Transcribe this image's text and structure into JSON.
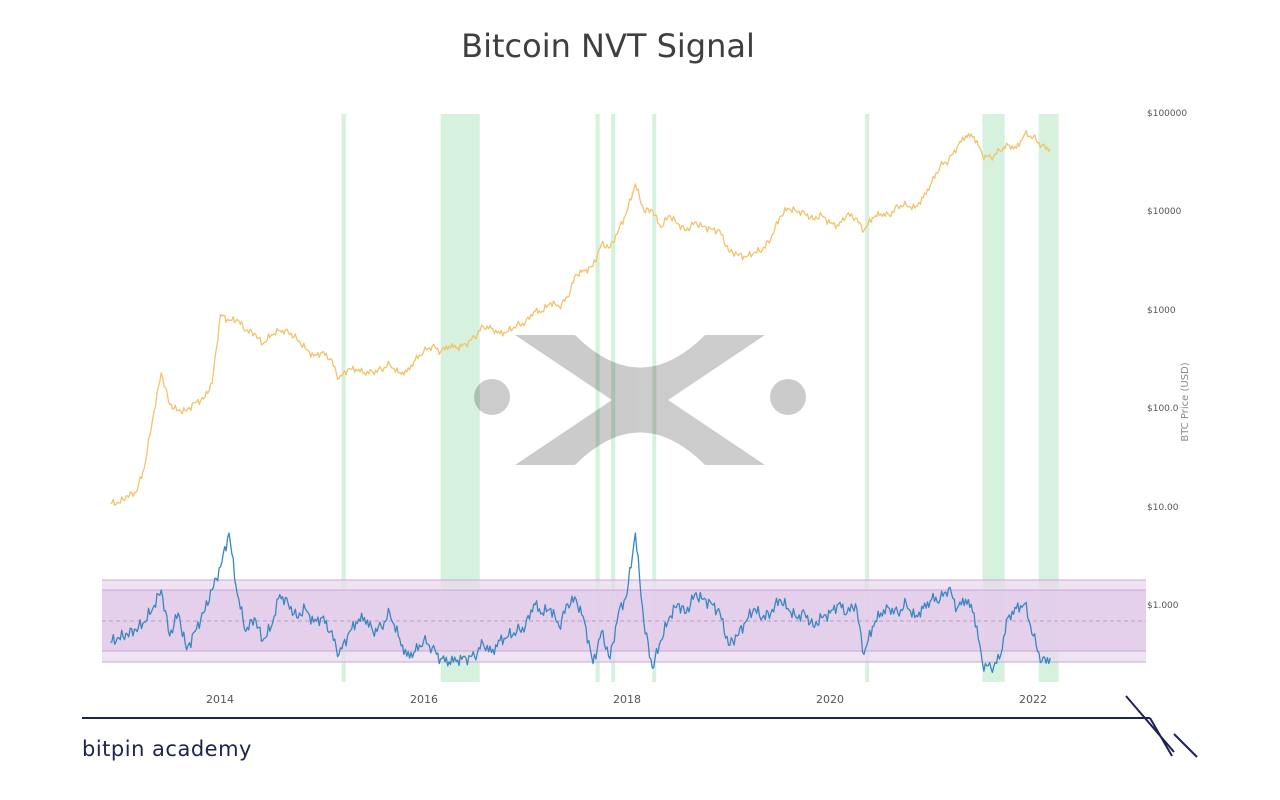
{
  "chart_data": {
    "title": "Bitcoin NVT Signal",
    "type": "line",
    "right_axis": {
      "label": "BTC Price (USD)",
      "scale": "log",
      "range": [
        1,
        100000
      ],
      "tick_labels": [
        "$100000",
        "$10000",
        "$1000",
        "$100.0",
        "$10.00",
        "$1.000"
      ]
    },
    "x_axis": {
      "range": [
        "2012-09",
        "2023-02"
      ],
      "tick_labels": [
        "2014",
        "2016",
        "2018",
        "2020",
        "2022"
      ]
    },
    "band_ranges": [
      [
        "2015-01-10",
        "2015-01-25"
      ],
      [
        "2016-01-01",
        "2016-05-20"
      ],
      [
        "2017-07-10",
        "2017-07-25"
      ],
      [
        "2017-09-05",
        "2017-09-20"
      ],
      [
        "2018-02-01",
        "2018-02-15"
      ],
      [
        "2020-03-05",
        "2020-03-20"
      ],
      [
        "2021-05-01",
        "2021-07-20"
      ],
      [
        "2021-11-20",
        "2022-01-31"
      ]
    ],
    "series": [
      {
        "color": "#f2c36b",
        "axis": "right",
        "points": [
          [
            "2012-10",
            11
          ],
          [
            "2012-11",
            11
          ],
          [
            "2012-12",
            13
          ],
          [
            "2013-01",
            14
          ],
          [
            "2013-02",
            25
          ],
          [
            "2013-03",
            80
          ],
          [
            "2013-04",
            230
          ],
          [
            "2013-05",
            110
          ],
          [
            "2013-06",
            95
          ],
          [
            "2013-07",
            95
          ],
          [
            "2013-08",
            115
          ],
          [
            "2013-09",
            125
          ],
          [
            "2013-10",
            180
          ],
          [
            "2013-11",
            900
          ],
          [
            "2013-12",
            780
          ],
          [
            "2014-01",
            800
          ],
          [
            "2014-02",
            620
          ],
          [
            "2014-03",
            580
          ],
          [
            "2014-04",
            450
          ],
          [
            "2014-05",
            560
          ],
          [
            "2014-06",
            620
          ],
          [
            "2014-07",
            600
          ],
          [
            "2014-08",
            510
          ],
          [
            "2014-09",
            410
          ],
          [
            "2014-10",
            340
          ],
          [
            "2014-11",
            370
          ],
          [
            "2014-12",
            320
          ],
          [
            "2015-01",
            200
          ],
          [
            "2015-02",
            250
          ],
          [
            "2015-03",
            250
          ],
          [
            "2015-04",
            230
          ],
          [
            "2015-05",
            235
          ],
          [
            "2015-06",
            250
          ],
          [
            "2015-07",
            280
          ],
          [
            "2015-08",
            230
          ],
          [
            "2015-09",
            235
          ],
          [
            "2015-10",
            310
          ],
          [
            "2015-11",
            380
          ],
          [
            "2015-12",
            430
          ],
          [
            "2016-01",
            380
          ],
          [
            "2016-02",
            430
          ],
          [
            "2016-03",
            415
          ],
          [
            "2016-04",
            450
          ],
          [
            "2016-05",
            530
          ],
          [
            "2016-06",
            680
          ],
          [
            "2016-07",
            650
          ],
          [
            "2016-08",
            575
          ],
          [
            "2016-09",
            610
          ],
          [
            "2016-10",
            700
          ],
          [
            "2016-11",
            740
          ],
          [
            "2016-12",
            960
          ],
          [
            "2017-01",
            970
          ],
          [
            "2017-02",
            1190
          ],
          [
            "2017-03",
            1080
          ],
          [
            "2017-04",
            1350
          ],
          [
            "2017-05",
            2300
          ],
          [
            "2017-06",
            2500
          ],
          [
            "2017-07",
            2800
          ],
          [
            "2017-08",
            4700
          ],
          [
            "2017-09",
            4300
          ],
          [
            "2017-10",
            6400
          ],
          [
            "2017-11",
            10000
          ],
          [
            "2017-12",
            19000
          ],
          [
            "2018-01",
            10200
          ],
          [
            "2018-02",
            10300
          ],
          [
            "2018-03",
            6900
          ],
          [
            "2018-04",
            9200
          ],
          [
            "2018-05",
            7500
          ],
          [
            "2018-06",
            6400
          ],
          [
            "2018-07",
            7700
          ],
          [
            "2018-08",
            7000
          ],
          [
            "2018-09",
            6600
          ],
          [
            "2018-10",
            6300
          ],
          [
            "2018-11",
            4000
          ],
          [
            "2018-12",
            3700
          ],
          [
            "2019-01",
            3450
          ],
          [
            "2019-02",
            3800
          ],
          [
            "2019-03",
            4100
          ],
          [
            "2019-04",
            5300
          ],
          [
            "2019-05",
            8600
          ],
          [
            "2019-06",
            10800
          ],
          [
            "2019-07",
            10100
          ],
          [
            "2019-08",
            9600
          ],
          [
            "2019-09",
            8300
          ],
          [
            "2019-10",
            9200
          ],
          [
            "2019-11",
            7600
          ],
          [
            "2019-12",
            7200
          ],
          [
            "2020-01",
            9350
          ],
          [
            "2020-02",
            8600
          ],
          [
            "2020-03",
            6400
          ],
          [
            "2020-04",
            8700
          ],
          [
            "2020-05",
            9450
          ],
          [
            "2020-06",
            9150
          ],
          [
            "2020-07",
            11300
          ],
          [
            "2020-08",
            11650
          ],
          [
            "2020-09",
            10800
          ],
          [
            "2020-10",
            13800
          ],
          [
            "2020-11",
            19700
          ],
          [
            "2020-12",
            29000
          ],
          [
            "2021-01",
            33100
          ],
          [
            "2021-02",
            45100
          ],
          [
            "2021-03",
            58800
          ],
          [
            "2021-04",
            57700
          ],
          [
            "2021-05",
            37300
          ],
          [
            "2021-06",
            35000
          ],
          [
            "2021-07",
            41500
          ],
          [
            "2021-08",
            47100
          ],
          [
            "2021-09",
            43800
          ],
          [
            "2021-10",
            61300
          ],
          [
            "2021-11",
            57000
          ],
          [
            "2021-12",
            46300
          ],
          [
            "2022-01",
            43000
          ]
        ]
      },
      {
        "color": "#3a86c0",
        "axis": "bottom",
        "points": [
          [
            "2012-10",
            0.43
          ],
          [
            "2012-11",
            0.48
          ],
          [
            "2012-12",
            0.52
          ],
          [
            "2013-01",
            0.57
          ],
          [
            "2013-02",
            0.65
          ],
          [
            "2013-03",
            0.8
          ],
          [
            "2013-04",
            1.0
          ],
          [
            "2013-05",
            0.5
          ],
          [
            "2013-06",
            0.75
          ],
          [
            "2013-07",
            0.35
          ],
          [
            "2013-08",
            0.55
          ],
          [
            "2013-09",
            0.75
          ],
          [
            "2013-10",
            1.0
          ],
          [
            "2013-11",
            1.25
          ],
          [
            "2013-12",
            1.62
          ],
          [
            "2014-01",
            0.95
          ],
          [
            "2014-02",
            0.55
          ],
          [
            "2014-03",
            0.7
          ],
          [
            "2014-04",
            0.45
          ],
          [
            "2014-05",
            0.6
          ],
          [
            "2014-06",
            0.95
          ],
          [
            "2014-07",
            0.85
          ],
          [
            "2014-08",
            0.7
          ],
          [
            "2014-09",
            0.8
          ],
          [
            "2014-10",
            0.65
          ],
          [
            "2014-11",
            0.7
          ],
          [
            "2014-12",
            0.55
          ],
          [
            "2015-01",
            0.3
          ],
          [
            "2015-02",
            0.5
          ],
          [
            "2015-03",
            0.65
          ],
          [
            "2015-04",
            0.7
          ],
          [
            "2015-05",
            0.55
          ],
          [
            "2015-06",
            0.6
          ],
          [
            "2015-07",
            0.75
          ],
          [
            "2015-08",
            0.5
          ],
          [
            "2015-09",
            0.28
          ],
          [
            "2015-10",
            0.33
          ],
          [
            "2015-11",
            0.45
          ],
          [
            "2015-12",
            0.37
          ],
          [
            "2016-01",
            0.25
          ],
          [
            "2016-02",
            0.22
          ],
          [
            "2016-03",
            0.24
          ],
          [
            "2016-04",
            0.26
          ],
          [
            "2016-05",
            0.28
          ],
          [
            "2016-06",
            0.42
          ],
          [
            "2016-07",
            0.32
          ],
          [
            "2016-08",
            0.45
          ],
          [
            "2016-09",
            0.5
          ],
          [
            "2016-10",
            0.55
          ],
          [
            "2016-11",
            0.6
          ],
          [
            "2016-12",
            0.85
          ],
          [
            "2017-01",
            0.75
          ],
          [
            "2017-02",
            0.8
          ],
          [
            "2017-03",
            0.6
          ],
          [
            "2017-04",
            0.85
          ],
          [
            "2017-05",
            0.9
          ],
          [
            "2017-06",
            0.65
          ],
          [
            "2017-07",
            0.2
          ],
          [
            "2017-08",
            0.55
          ],
          [
            "2017-09",
            0.25
          ],
          [
            "2017-10",
            0.75
          ],
          [
            "2017-11",
            0.95
          ],
          [
            "2017-12",
            1.62
          ],
          [
            "2018-01",
            0.65
          ],
          [
            "2018-02",
            0.15
          ],
          [
            "2018-03",
            0.45
          ],
          [
            "2018-04",
            0.7
          ],
          [
            "2018-05",
            0.85
          ],
          [
            "2018-06",
            0.75
          ],
          [
            "2018-07",
            0.95
          ],
          [
            "2018-08",
            0.9
          ],
          [
            "2018-09",
            0.85
          ],
          [
            "2018-10",
            0.75
          ],
          [
            "2018-11",
            0.4
          ],
          [
            "2018-12",
            0.5
          ],
          [
            "2019-01",
            0.65
          ],
          [
            "2019-02",
            0.8
          ],
          [
            "2019-03",
            0.7
          ],
          [
            "2019-04",
            0.75
          ],
          [
            "2019-05",
            0.9
          ],
          [
            "2019-06",
            0.8
          ],
          [
            "2019-07",
            0.7
          ],
          [
            "2019-08",
            0.75
          ],
          [
            "2019-09",
            0.6
          ],
          [
            "2019-10",
            0.7
          ],
          [
            "2019-11",
            0.75
          ],
          [
            "2019-12",
            0.85
          ],
          [
            "2020-01",
            0.75
          ],
          [
            "2020-02",
            0.85
          ],
          [
            "2020-03",
            0.3
          ],
          [
            "2020-04",
            0.6
          ],
          [
            "2020-05",
            0.75
          ],
          [
            "2020-06",
            0.8
          ],
          [
            "2020-07",
            0.75
          ],
          [
            "2020-08",
            0.85
          ],
          [
            "2020-09",
            0.7
          ],
          [
            "2020-10",
            0.8
          ],
          [
            "2020-11",
            0.9
          ],
          [
            "2020-12",
            0.9
          ],
          [
            "2021-01",
            1.02
          ],
          [
            "2021-02",
            0.8
          ],
          [
            "2021-03",
            0.9
          ],
          [
            "2021-04",
            0.75
          ],
          [
            "2021-05",
            0.2
          ],
          [
            "2021-06",
            0.15
          ],
          [
            "2021-07",
            0.25
          ],
          [
            "2021-08",
            0.7
          ],
          [
            "2021-09",
            0.8
          ],
          [
            "2021-10",
            0.85
          ],
          [
            "2021-11",
            0.5
          ],
          [
            "2021-12",
            0.22
          ],
          [
            "2022-01",
            0.26
          ]
        ]
      }
    ]
  },
  "footer": {
    "brand": "bitpin academy"
  }
}
